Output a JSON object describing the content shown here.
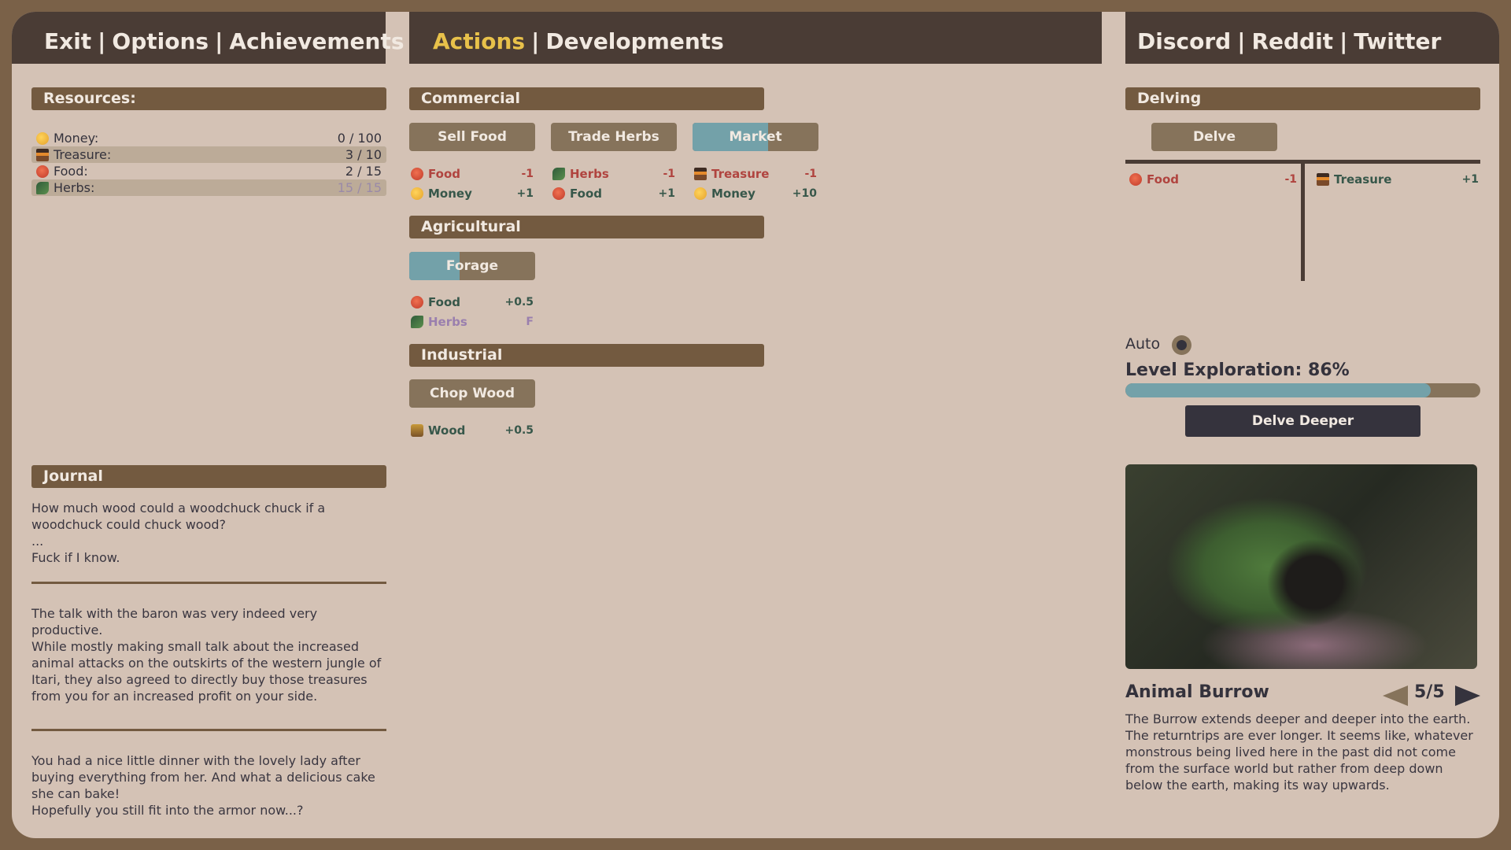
{
  "nav_left": [
    "Exit",
    "Options",
    "Achievements"
  ],
  "nav_middle": {
    "active": "Actions",
    "other": "Developments"
  },
  "nav_right": [
    "Discord",
    "Reddit",
    "Twitter"
  ],
  "colors": {
    "frame": "#7a6148",
    "background": "#d4c2b5",
    "bar": "#4a3c35",
    "header": "#735a40",
    "button": "#86735b",
    "progress": "#73a1a9",
    "active_tab": "#e8c14a",
    "negative": "#b0443f",
    "positive": "#37574a"
  },
  "resources": {
    "title": "Resources:",
    "items": [
      {
        "icon": "money-icon",
        "name": "Money:",
        "value": "0 / 100",
        "highlight": false
      },
      {
        "icon": "treasure-icon",
        "name": "Treasure:",
        "value": "3 / 10",
        "highlight": true
      },
      {
        "icon": "food-icon",
        "name": "Food:",
        "value": "2 / 15",
        "highlight": false
      },
      {
        "icon": "herbs-icon",
        "name": "Herbs:",
        "value": "15 / 15",
        "highlight": true
      }
    ]
  },
  "journal": {
    "title": "Journal",
    "entries": [
      "How much wood could a woodchuck chuck if a woodchuck could chuck wood?\n...\nFuck if I know.",
      "The talk with the baron was very indeed very productive.\nWhile mostly making small talk about the increased animal attacks on the outskirts of the western jungle of Itari, they also agreed to directly buy those treasures from you for an increased profit on your side.",
      "You had a nice little dinner with the lovely lady after buying everything from her. And what a delicious cake she can bake!\nHopefully you still fit into the armor now...?"
    ]
  },
  "commercial": {
    "title": "Commercial",
    "actions": [
      {
        "label": "Sell Food",
        "progress": 0,
        "effects": [
          {
            "name": "Food",
            "value": "-1",
            "type": "neg"
          },
          {
            "name": "Money",
            "value": "+1",
            "type": "pos"
          }
        ]
      },
      {
        "label": "Trade Herbs",
        "progress": 0,
        "effects": [
          {
            "name": "Herbs",
            "value": "-1",
            "type": "neg"
          },
          {
            "name": "Food",
            "value": "+1",
            "type": "pos"
          }
        ]
      },
      {
        "label": "Market",
        "progress": 0.6,
        "effects": [
          {
            "name": "Treasure",
            "value": "-1",
            "type": "neg"
          },
          {
            "name": "Money",
            "value": "+10",
            "type": "pos"
          }
        ]
      }
    ]
  },
  "agricultural": {
    "title": "Agricultural",
    "actions": [
      {
        "label": "Forage",
        "progress": 0.4,
        "effects": [
          {
            "name": "Food",
            "value": "+0.5",
            "type": "pos"
          },
          {
            "name": "Herbs",
            "value": "F",
            "type": "fx"
          }
        ]
      }
    ]
  },
  "industrial": {
    "title": "Industrial",
    "actions": [
      {
        "label": "Chop Wood",
        "progress": 0,
        "effects": [
          {
            "name": "Wood",
            "value": "+0.5",
            "type": "pos"
          }
        ]
      }
    ]
  },
  "delving": {
    "title": "Delving",
    "button": "Delve",
    "costs": [
      {
        "name": "Food",
        "value": "-1"
      }
    ],
    "gains": [
      {
        "name": "Treasure",
        "value": "+1"
      }
    ],
    "auto_label": "Auto",
    "auto_on": true,
    "exploration_label": "Level Exploration: 86%",
    "exploration": 0.86,
    "delve_deeper": "Delve Deeper",
    "location": {
      "name": "Animal Burrow",
      "page": "5/5",
      "description": "The Burrow extends deeper and deeper into the earth. The returntrips are ever longer. It seems like, whatever monstrous being lived here in the past did not come from the surface world but rather from deep down below the earth, making its way upwards."
    }
  }
}
